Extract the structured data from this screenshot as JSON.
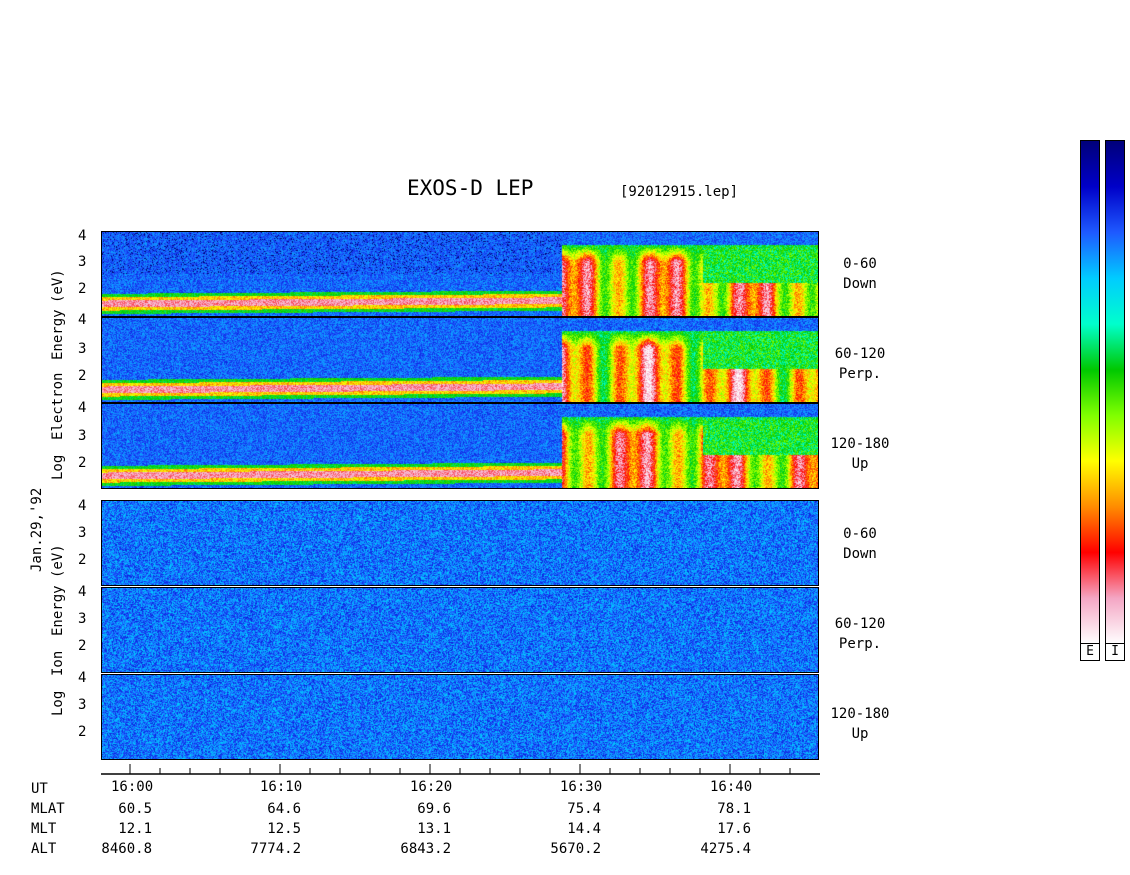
{
  "title": "EXOS-D LEP",
  "file_label": "[92012915.lep]",
  "date_label": "Jan.29,'92",
  "colorbar_labels": [
    "E",
    "I"
  ],
  "colorbar_colors": [
    "#ffffff",
    "#f4a6c4",
    "#ff0000",
    "#ff8c00",
    "#ffff00",
    "#7fff00",
    "#00c800",
    "#00ffcc",
    "#00ccff",
    "#1e5aff",
    "#0000c8",
    "#00007a"
  ],
  "chart_data": {
    "type": "heatmap",
    "x_axis": {
      "label": "UT",
      "ticks": [
        "16:00",
        "16:10",
        "16:20",
        "16:30",
        "16:40"
      ]
    },
    "orbit_table": [
      {
        "name": "UT",
        "values": []
      },
      {
        "name": "MLAT",
        "values": [
          "60.5",
          "64.6",
          "69.6",
          "75.4",
          "78.1"
        ]
      },
      {
        "name": "MLT",
        "values": [
          "12.1",
          "12.5",
          "13.1",
          "14.4",
          "17.6"
        ]
      },
      {
        "name": "ALT",
        "values": [
          "8460.8",
          "7774.2",
          "6843.2",
          "5670.2",
          "4275.4"
        ]
      }
    ],
    "groups": [
      {
        "species": "Electron",
        "ylabel_words": [
          "Log",
          "Electron",
          "Energy",
          "(eV)"
        ],
        "panels": [
          {
            "label_top": "0-60",
            "label_bottom": "Down",
            "yticks": [
              "4",
              "3",
              "2"
            ]
          },
          {
            "label_top": "60-120",
            "label_bottom": "Perp.",
            "yticks": [
              "4",
              "3",
              "2"
            ]
          },
          {
            "label_top": "120-180",
            "label_bottom": "Up",
            "yticks": [
              "4",
              "3",
              "2"
            ]
          }
        ]
      },
      {
        "species": "Ion",
        "ylabel_words": [
          "Log",
          "Ion",
          "Energy",
          "(eV)"
        ],
        "panels": [
          {
            "label_top": "0-60",
            "label_bottom": "Down",
            "yticks": [
              "4",
              "3",
              "2"
            ]
          },
          {
            "label_top": "60-120",
            "label_bottom": "Perp.",
            "yticks": [
              "4",
              "3",
              "2"
            ]
          },
          {
            "label_top": "120-180",
            "label_bottom": "Up",
            "yticks": [
              "4",
              "3",
              "2"
            ]
          }
        ]
      }
    ]
  }
}
